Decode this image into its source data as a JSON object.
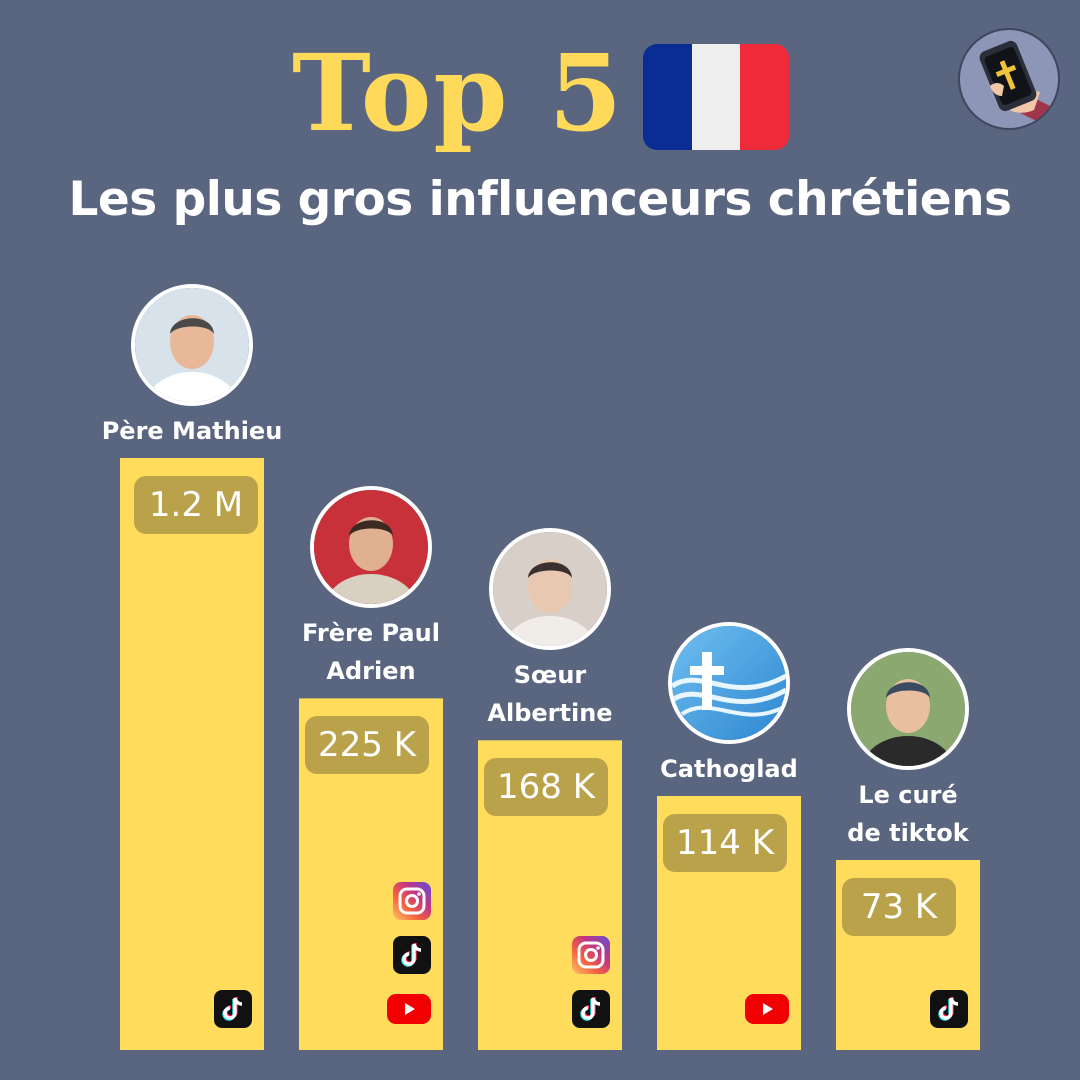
{
  "header": {
    "title": "Top 5",
    "subtitle": "Les plus gros influenceurs chrétiens"
  },
  "colors": {
    "background": "#5a6580",
    "bar": "#ffdc5c",
    "badge": "#b9a24a",
    "title": "#ffd95a",
    "flag_blue": "#0a2d94",
    "flag_white": "#eeeeee",
    "flag_red": "#ef2b3a"
  },
  "chart_data": {
    "type": "bar",
    "categories": [
      "Père Mathieu",
      "Frère Paul Adrien",
      "Sœur Albertine",
      "Cathoglad",
      "Le curé de tiktok"
    ],
    "values": [
      1200000,
      225000,
      168000,
      114000,
      73000
    ],
    "value_labels": [
      "1.2 M",
      "225 K",
      "168 K",
      "114 K",
      "73 K"
    ],
    "name_lines": [
      [
        "Père Mathieu"
      ],
      [
        "Frère Paul",
        "Adrien"
      ],
      [
        "Sœur",
        "Albertine"
      ],
      [
        "Cathoglad"
      ],
      [
        "Le curé",
        "de tiktok"
      ]
    ],
    "platforms": [
      [
        "tiktok-icon"
      ],
      [
        "instagram-icon",
        "tiktok-icon",
        "youtube-icon"
      ],
      [
        "instagram-icon",
        "tiktok-icon"
      ],
      [
        "youtube-icon"
      ],
      [
        "tiktok-icon"
      ]
    ],
    "avatars": [
      "person-photo",
      "person-photo",
      "person-photo",
      "cross-logo",
      "person-photo"
    ],
    "title": "Top 5",
    "subtitle": "Les plus gros influenceurs chrétiens",
    "xlabel": "",
    "ylabel": "",
    "grid": false,
    "legend": "none"
  }
}
